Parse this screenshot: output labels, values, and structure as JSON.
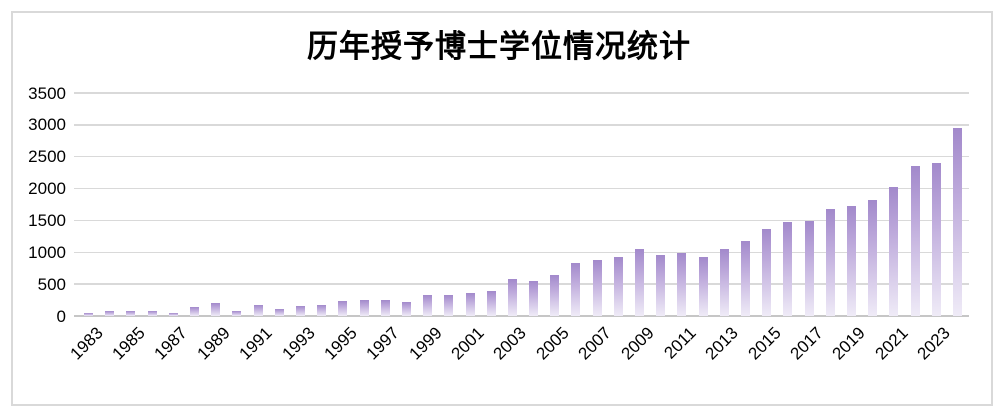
{
  "chart": {
    "title": "历年授予博士学位情况统计"
  },
  "chart_data": {
    "type": "bar",
    "title": "历年授予博士学位情况统计",
    "xlabel": "",
    "ylabel": "",
    "x": [
      1983,
      1984,
      1985,
      1986,
      1987,
      1988,
      1989,
      1990,
      1991,
      1992,
      1993,
      1994,
      1995,
      1996,
      1997,
      1998,
      1999,
      2000,
      2001,
      2002,
      2003,
      2004,
      2005,
      2006,
      2007,
      2008,
      2009,
      2010,
      2011,
      2012,
      2013,
      2014,
      2015,
      2016,
      2017,
      2018,
      2019,
      2020,
      2021,
      2022,
      2023,
      2024
    ],
    "values": [
      45,
      85,
      75,
      75,
      50,
      140,
      200,
      85,
      165,
      105,
      160,
      180,
      235,
      250,
      245,
      220,
      335,
      325,
      355,
      390,
      575,
      555,
      640,
      825,
      880,
      920,
      1050,
      955,
      990,
      920,
      1055,
      1180,
      1360,
      1475,
      1490,
      1680,
      1730,
      1820,
      2030,
      2350,
      2400,
      2950
    ],
    "x_tick_labels": [
      "1983",
      "1985",
      "1987",
      "1989",
      "1991",
      "1993",
      "1995",
      "1997",
      "1999",
      "2001",
      "2003",
      "2005",
      "2007",
      "2009",
      "2011",
      "2013",
      "2015",
      "2017",
      "2019",
      "2021",
      "2023"
    ],
    "y_ticks": [
      0,
      500,
      1000,
      1500,
      2000,
      2500,
      3000,
      3500
    ],
    "ylim": [
      0,
      3500
    ],
    "grid": true,
    "legend": "none",
    "colors": {
      "bar_gradient_top": "#a289cb",
      "bar_gradient_bottom": "#efebf7",
      "gridline": "#d9d9d9",
      "axis_line": "#c6c6c6",
      "frame_border": "#d9d9d9",
      "text": "#000000"
    }
  }
}
